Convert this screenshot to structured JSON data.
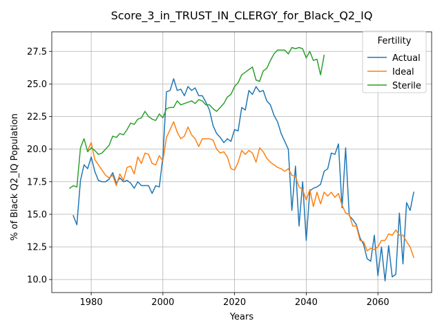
{
  "chart_data": {
    "type": "line",
    "title": "Score_3_in_TRUST_IN_CLERGY_for_Black_Q2_IQ",
    "xlabel": "Years",
    "ylabel": "% of Black Q2_IQ Population",
    "xlim": [
      1969,
      2075
    ],
    "ylim": [
      9.0,
      29.0
    ],
    "xticks": [
      1980,
      2000,
      2020,
      2040,
      2060
    ],
    "yticks": [
      10.0,
      12.5,
      15.0,
      17.5,
      20.0,
      22.5,
      25.0,
      27.5
    ],
    "grid": true,
    "legend": {
      "title": "Fertility",
      "placement": "top-right"
    },
    "series": [
      {
        "name": "Actual",
        "color": "#1f77b4",
        "x": [
          1975,
          1976,
          1977,
          1978,
          1979,
          1980,
          1981,
          1982,
          1983,
          1984,
          1985,
          1986,
          1987,
          1988,
          1989,
          1990,
          1991,
          1992,
          1993,
          1994,
          1995,
          1996,
          1997,
          1998,
          1999,
          2000,
          2001,
          2002,
          2003,
          2004,
          2005,
          2006,
          2007,
          2008,
          2009,
          2010,
          2011,
          2012,
          2013,
          2014,
          2015,
          2016,
          2017,
          2018,
          2019,
          2020,
          2021,
          2022,
          2023,
          2024,
          2025,
          2026,
          2027,
          2028,
          2029,
          2030,
          2031,
          2032,
          2033,
          2034,
          2035,
          2036,
          2037,
          2038,
          2039,
          2040,
          2041,
          2042,
          2043,
          2044,
          2045,
          2046,
          2047,
          2048,
          2049,
          2050,
          2051,
          2052,
          2053,
          2054,
          2055,
          2056,
          2057,
          2058,
          2059,
          2060,
          2061,
          2062,
          2063,
          2064,
          2065,
          2066,
          2067,
          2068,
          2069,
          2070
        ],
        "values": [
          14.9,
          14.2,
          17.6,
          18.8,
          18.5,
          19.4,
          18.3,
          17.6,
          17.5,
          17.5,
          17.7,
          18.2,
          17.4,
          17.8,
          17.5,
          17.6,
          17.4,
          17.0,
          17.5,
          17.2,
          17.2,
          17.2,
          16.6,
          17.2,
          17.1,
          19.4,
          24.4,
          24.5,
          25.4,
          24.5,
          24.6,
          24.1,
          24.8,
          24.5,
          24.7,
          24.1,
          24.1,
          23.6,
          23.0,
          21.8,
          21.2,
          20.9,
          20.5,
          20.8,
          20.6,
          21.5,
          21.4,
          23.2,
          23.0,
          24.5,
          24.2,
          24.8,
          24.4,
          24.5,
          23.7,
          23.4,
          22.6,
          22.1,
          21.2,
          20.6,
          20.0,
          15.3,
          18.7,
          14.1,
          17.5,
          13.0,
          16.8,
          17.0,
          17.1,
          17.3,
          18.3,
          18.5,
          19.7,
          19.6,
          20.4,
          15.5,
          20.1,
          14.9,
          14.6,
          14.2,
          13.2,
          12.7,
          11.6,
          11.4,
          13.4,
          10.3,
          12.5,
          9.9,
          12.6,
          10.2,
          10.4,
          15.1,
          11.2,
          15.9,
          15.3,
          16.7
        ]
      },
      {
        "name": "Ideal",
        "color": "#ff7f0e",
        "x": [
          1979,
          1980,
          1981,
          1982,
          1983,
          1984,
          1985,
          1986,
          1987,
          1988,
          1989,
          1990,
          1991,
          1992,
          1993,
          1994,
          1995,
          1996,
          1997,
          1998,
          1999,
          2000,
          2001,
          2002,
          2003,
          2004,
          2005,
          2006,
          2007,
          2008,
          2009,
          2010,
          2011,
          2012,
          2013,
          2014,
          2015,
          2016,
          2017,
          2018,
          2019,
          2020,
          2021,
          2022,
          2023,
          2024,
          2025,
          2026,
          2027,
          2028,
          2029,
          2030,
          2031,
          2032,
          2033,
          2034,
          2035,
          2036,
          2037,
          2038,
          2039,
          2040,
          2041,
          2042,
          2043,
          2044,
          2045,
          2046,
          2047,
          2048,
          2049,
          2050,
          2051,
          2052,
          2053,
          2054,
          2055,
          2056,
          2057,
          2058,
          2059,
          2060,
          2061,
          2062,
          2063,
          2064,
          2065,
          2066,
          2067,
          2068,
          2069,
          2070
        ],
        "values": [
          19.9,
          20.5,
          19.2,
          18.8,
          18.4,
          18.0,
          17.8,
          18.0,
          17.2,
          18.1,
          17.6,
          18.6,
          18.7,
          18.1,
          19.4,
          18.9,
          19.7,
          19.6,
          18.9,
          18.8,
          19.5,
          19.1,
          20.9,
          21.5,
          22.1,
          21.3,
          20.8,
          21.0,
          21.7,
          21.1,
          20.8,
          20.2,
          20.8,
          20.8,
          20.8,
          20.7,
          20.0,
          19.7,
          19.8,
          19.4,
          18.5,
          18.4,
          19.0,
          19.9,
          19.6,
          19.9,
          19.7,
          19.0,
          20.1,
          19.8,
          19.3,
          19.0,
          18.8,
          18.6,
          18.5,
          18.3,
          18.5,
          18.0,
          17.9,
          17.1,
          16.9,
          16.1,
          16.9,
          15.6,
          16.7,
          15.8,
          16.7,
          16.4,
          16.7,
          16.3,
          16.6,
          15.7,
          15.1,
          15.0,
          14.1,
          14.1,
          13.0,
          12.9,
          12.2,
          12.4,
          12.3,
          12.5,
          13.0,
          13.0,
          13.5,
          13.4,
          13.8,
          13.4,
          13.4,
          12.9,
          12.5,
          11.7
        ]
      },
      {
        "name": "Sterile",
        "color": "#2ca02c",
        "x": [
          1974,
          1975,
          1976,
          1977,
          1978,
          1979,
          1980,
          1981,
          1982,
          1983,
          1984,
          1985,
          1986,
          1987,
          1988,
          1989,
          1990,
          1991,
          1992,
          1993,
          1994,
          1995,
          1996,
          1997,
          1998,
          1999,
          2000,
          2001,
          2002,
          2003,
          2004,
          2005,
          2006,
          2007,
          2008,
          2009,
          2010,
          2011,
          2012,
          2013,
          2014,
          2015,
          2016,
          2017,
          2018,
          2019,
          2020,
          2021,
          2022,
          2023,
          2024,
          2025,
          2026,
          2027,
          2028,
          2029,
          2030,
          2031,
          2032,
          2033,
          2034,
          2035,
          2036,
          2037,
          2038,
          2039,
          2040,
          2041,
          2042,
          2043,
          2044,
          2045
        ],
        "values": [
          17.0,
          17.2,
          17.1,
          20.1,
          20.8,
          19.8,
          20.1,
          19.9,
          19.6,
          19.7,
          20.0,
          20.3,
          21.0,
          20.9,
          21.2,
          21.1,
          21.5,
          22.0,
          21.9,
          22.3,
          22.4,
          22.9,
          22.5,
          22.3,
          22.2,
          22.7,
          22.4,
          23.1,
          23.2,
          23.2,
          23.7,
          23.4,
          23.5,
          23.6,
          23.7,
          23.5,
          23.8,
          23.7,
          23.4,
          23.4,
          23.1,
          22.9,
          23.2,
          23.5,
          24.0,
          24.2,
          24.8,
          25.1,
          25.7,
          25.9,
          26.1,
          26.3,
          25.3,
          25.2,
          26.0,
          26.2,
          26.8,
          27.3,
          27.6,
          27.6,
          27.6,
          27.3,
          27.8,
          27.7,
          27.8,
          27.7,
          27.0,
          27.5,
          26.8,
          26.9,
          25.7,
          27.2
        ]
      }
    ]
  }
}
